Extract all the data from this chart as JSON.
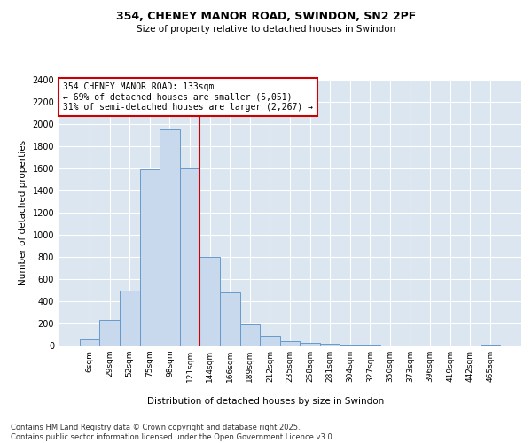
{
  "title1": "354, CHENEY MANOR ROAD, SWINDON, SN2 2PF",
  "title2": "Size of property relative to detached houses in Swindon",
  "xlabel": "Distribution of detached houses by size in Swindon",
  "ylabel": "Number of detached properties",
  "bar_color": "#c9d9ed",
  "bar_edge_color": "#6699cc",
  "categories": [
    "6sqm",
    "29sqm",
    "52sqm",
    "75sqm",
    "98sqm",
    "121sqm",
    "144sqm",
    "166sqm",
    "189sqm",
    "212sqm",
    "235sqm",
    "258sqm",
    "281sqm",
    "304sqm",
    "327sqm",
    "350sqm",
    "373sqm",
    "396sqm",
    "419sqm",
    "442sqm",
    "465sqm"
  ],
  "values": [
    55,
    230,
    500,
    1595,
    1950,
    1600,
    800,
    480,
    195,
    85,
    40,
    25,
    18,
    10,
    5,
    4,
    2,
    1,
    0,
    0,
    12
  ],
  "ylim": [
    0,
    2400
  ],
  "yticks": [
    0,
    200,
    400,
    600,
    800,
    1000,
    1200,
    1400,
    1600,
    1800,
    2000,
    2200,
    2400
  ],
  "vline_x_idx": 5,
  "vline_color": "#cc0000",
  "annotation_title": "354 CHENEY MANOR ROAD: 133sqm",
  "annotation_line1": "← 69% of detached houses are smaller (5,051)",
  "annotation_line2": "31% of semi-detached houses are larger (2,267) →",
  "annotation_box_color": "#cc0000",
  "bg_color": "#dce6f0",
  "footer1": "Contains HM Land Registry data © Crown copyright and database right 2025.",
  "footer2": "Contains public sector information licensed under the Open Government Licence v3.0."
}
